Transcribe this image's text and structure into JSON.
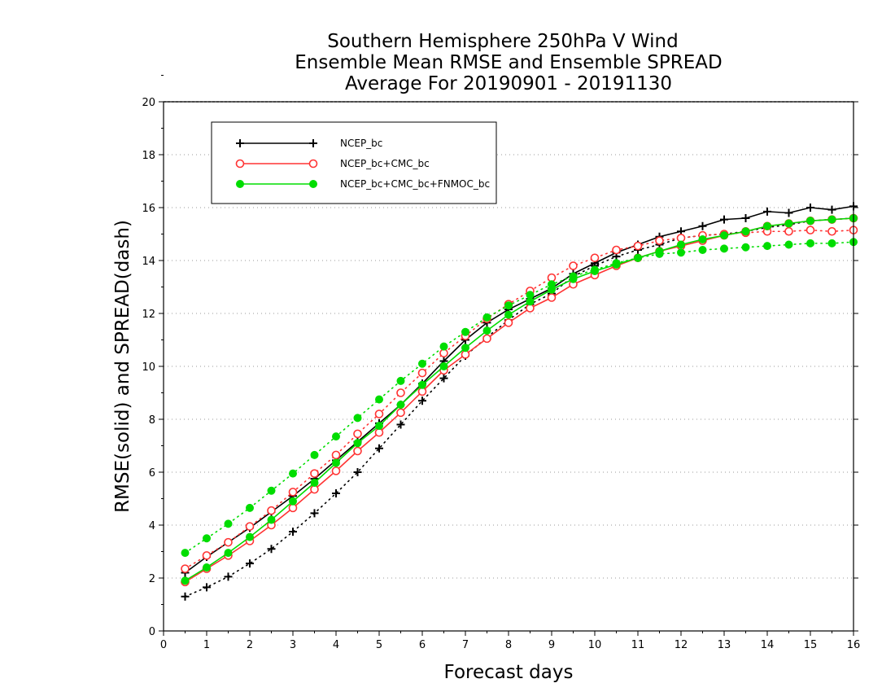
{
  "chart_data": {
    "type": "line",
    "title": [
      "Southern Hemisphere 250hPa V Wind",
      "Ensemble Mean RMSE and Ensemble SPREAD",
      "Average For 20190901 - 20191130"
    ],
    "xlabel": "Forecast days",
    "ylabel": "RMSE(solid) and SPREAD(dash)",
    "xlim": [
      0,
      16
    ],
    "ylim": [
      0,
      20
    ],
    "xticks": [
      0,
      1,
      2,
      3,
      4,
      5,
      6,
      7,
      8,
      9,
      10,
      11,
      12,
      13,
      14,
      15,
      16
    ],
    "yticks": [
      0,
      2,
      4,
      6,
      8,
      10,
      12,
      14,
      16,
      18,
      20
    ],
    "grid": "horizontal dotted",
    "legend_position": "top-left",
    "x": [
      0.5,
      1,
      1.5,
      2,
      2.5,
      3,
      3.5,
      4,
      4.5,
      5,
      5.5,
      6,
      6.5,
      7,
      7.5,
      8,
      8.5,
      9,
      9.5,
      10,
      10.5,
      11,
      11.5,
      12,
      12.5,
      13,
      13.5,
      14,
      14.5,
      15,
      15.5,
      16
    ],
    "series": [
      {
        "name": "NCEP_bc",
        "color": "#000000",
        "marker": "plus",
        "rmse": [
          2.2,
          2.8,
          3.35,
          3.9,
          4.5,
          5.1,
          5.75,
          6.45,
          7.15,
          7.85,
          8.55,
          9.35,
          10.2,
          11.0,
          11.65,
          12.15,
          12.55,
          12.95,
          13.5,
          13.9,
          14.3,
          14.6,
          14.9,
          15.1,
          15.3,
          15.55,
          15.6,
          15.85,
          15.8,
          16.0,
          15.92,
          16.05
        ],
        "spread": [
          1.3,
          1.65,
          2.05,
          2.55,
          3.1,
          3.75,
          4.45,
          5.2,
          6.0,
          6.9,
          7.8,
          8.7,
          9.55,
          10.4,
          11.1,
          11.75,
          12.35,
          12.75,
          13.4,
          13.8,
          14.15,
          14.4,
          14.6,
          14.85,
          14.95,
          15.0,
          15.1,
          15.25,
          15.35,
          15.5,
          15.55,
          15.6
        ]
      },
      {
        "name": "NCEP_bc+CMC_bc",
        "color": "#ff3333",
        "marker": "open-circle",
        "rmse": [
          1.85,
          2.35,
          2.85,
          3.4,
          4.0,
          4.65,
          5.35,
          6.05,
          6.8,
          7.5,
          8.25,
          9.05,
          9.85,
          10.45,
          11.05,
          11.65,
          12.2,
          12.6,
          13.1,
          13.45,
          13.8,
          14.1,
          14.35,
          14.55,
          14.75,
          14.95,
          15.1,
          15.3,
          15.4,
          15.5,
          15.55,
          15.6
        ],
        "spread": [
          2.35,
          2.85,
          3.35,
          3.95,
          4.55,
          5.25,
          5.95,
          6.65,
          7.45,
          8.2,
          9.0,
          9.75,
          10.5,
          11.15,
          11.8,
          12.35,
          12.85,
          13.35,
          13.8,
          14.1,
          14.4,
          14.55,
          14.75,
          14.85,
          14.95,
          15.0,
          15.05,
          15.1,
          15.1,
          15.15,
          15.1,
          15.15
        ]
      },
      {
        "name": "NCEP_bc+CMC_bc+FNMOC_bc",
        "color": "#00dd00",
        "marker": "filled-circle",
        "rmse": [
          1.9,
          2.4,
          2.95,
          3.55,
          4.2,
          4.9,
          5.6,
          6.35,
          7.1,
          7.75,
          8.55,
          9.3,
          10.0,
          10.7,
          11.35,
          11.95,
          12.45,
          12.9,
          13.3,
          13.6,
          13.85,
          14.1,
          14.35,
          14.6,
          14.8,
          14.95,
          15.1,
          15.3,
          15.4,
          15.5,
          15.55,
          15.6
        ],
        "spread": [
          2.95,
          3.5,
          4.05,
          4.65,
          5.3,
          5.95,
          6.65,
          7.35,
          8.05,
          8.75,
          9.45,
          10.1,
          10.75,
          11.3,
          11.85,
          12.3,
          12.7,
          13.1,
          13.4,
          13.65,
          13.9,
          14.1,
          14.25,
          14.3,
          14.4,
          14.45,
          14.5,
          14.55,
          14.6,
          14.65,
          14.65,
          14.7
        ]
      }
    ]
  }
}
